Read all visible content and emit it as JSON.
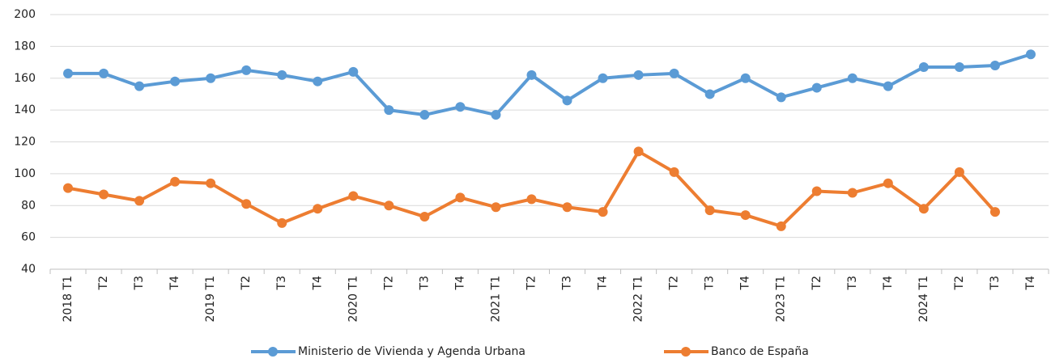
{
  "chart_data": {
    "type": "line",
    "categories": [
      "2018 T1",
      "T2",
      "T3",
      "T4",
      "2019 T1",
      "T2",
      "T3",
      "T4",
      "2020 T1",
      "T2",
      "T3",
      "T4",
      "2021 T1",
      "T2",
      "T3",
      "T4",
      "2022 T1",
      "T2",
      "T3",
      "T4",
      "2023 T1",
      "T2",
      "T3",
      "T4",
      "2024 T1",
      "T2",
      "T3",
      "T4"
    ],
    "series": [
      {
        "name": "Ministerio de Vivienda y Agenda Urbana",
        "color": "#5b9bd5",
        "values": [
          163,
          163,
          155,
          158,
          160,
          165,
          162,
          158,
          164,
          140,
          137,
          142,
          137,
          162,
          146,
          160,
          162,
          163,
          150,
          160,
          148,
          154,
          160,
          155,
          167,
          167,
          168,
          175
        ]
      },
      {
        "name": "Banco de España",
        "color": "#ed7d31",
        "values": [
          91,
          87,
          83,
          95,
          94,
          81,
          69,
          78,
          86,
          80,
          73,
          85,
          79,
          84,
          79,
          76,
          114,
          101,
          77,
          74,
          67,
          89,
          88,
          94,
          78,
          101,
          76,
          null
        ]
      }
    ],
    "ylim": [
      40,
      200
    ],
    "yticks": [
      40,
      60,
      80,
      100,
      120,
      140,
      160,
      180,
      200
    ],
    "grid": true,
    "legend": "bottom"
  }
}
